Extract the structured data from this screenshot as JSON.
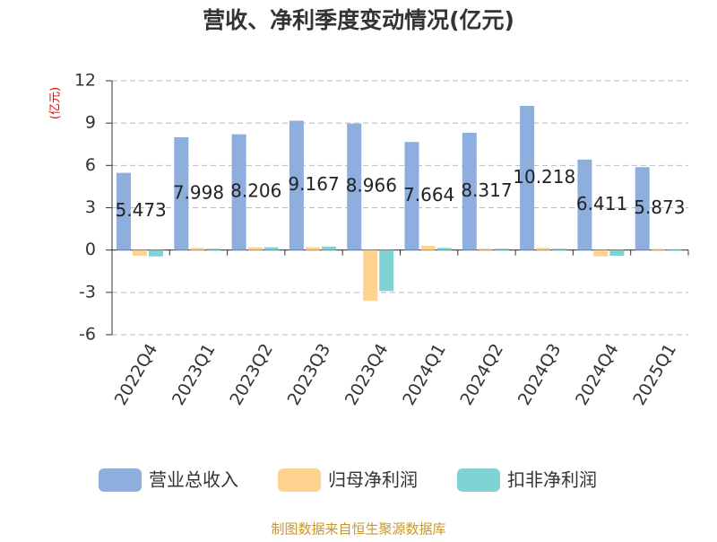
{
  "chart_data": {
    "type": "bar",
    "title": "营收、净利季度变动情况(亿元)",
    "y_label": "(亿元)",
    "source": "制图数据来自恒生聚源数据库",
    "categories": [
      "2022Q4",
      "2023Q1",
      "2023Q2",
      "2023Q3",
      "2023Q4",
      "2024Q1",
      "2024Q2",
      "2024Q3",
      "2024Q4",
      "2025Q1"
    ],
    "series": [
      {
        "name": "营业总收入",
        "color": "#8eaedd",
        "values": [
          5.473,
          7.998,
          8.206,
          9.167,
          8.966,
          7.664,
          8.317,
          10.218,
          6.411,
          5.873
        ],
        "show_labels": true
      },
      {
        "name": "归母净利润",
        "color": "#fdd38f",
        "values": [
          -0.4,
          0.15,
          0.2,
          0.2,
          -3.6,
          0.3,
          0.1,
          0.15,
          -0.45,
          0.08
        ]
      },
      {
        "name": "扣非净利润",
        "color": "#7fd3d3",
        "values": [
          -0.45,
          0.1,
          0.2,
          0.25,
          -2.9,
          0.15,
          0.1,
          0.1,
          -0.4,
          0.06
        ]
      }
    ],
    "ylim": [
      -6,
      12
    ],
    "yticks": [
      -6,
      -3,
      0,
      3,
      6,
      9,
      12
    ],
    "grid": true,
    "legend": "bottom"
  }
}
